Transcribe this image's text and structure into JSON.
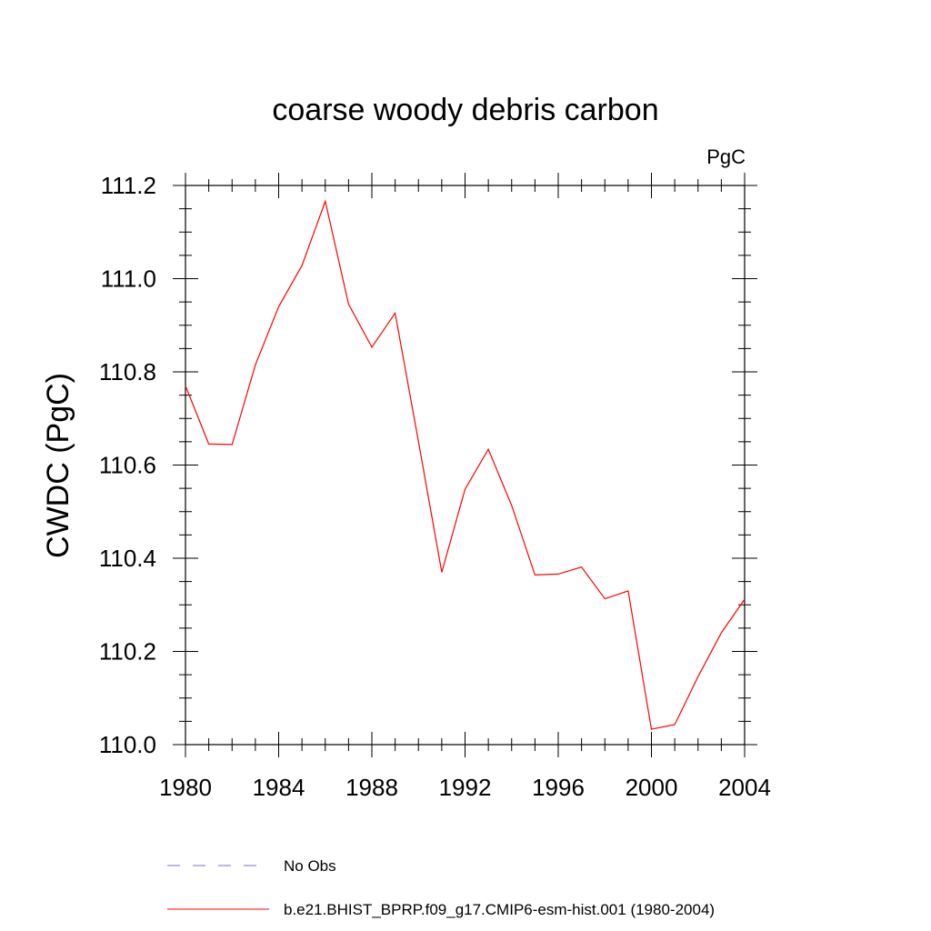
{
  "chart_data": {
    "type": "line",
    "title": "coarse woody debris carbon",
    "units": "PgC",
    "xlabel": "",
    "ylabel": "CWDC  (PgC)",
    "xlim": [
      1980,
      2004
    ],
    "ylim": [
      110.0,
      111.2
    ],
    "x_ticks": [
      1980,
      1984,
      1988,
      1992,
      1996,
      2000,
      2004
    ],
    "x_tick_labels": [
      "1980",
      "1984",
      "1988",
      "1992",
      "1996",
      "2000",
      "2004"
    ],
    "y_ticks": [
      110.0,
      110.2,
      110.4,
      110.6,
      110.8,
      111.0,
      111.2
    ],
    "y_tick_labels": [
      "110.0",
      "110.2",
      "110.4",
      "110.6",
      "110.8",
      "111.0",
      "111.2"
    ],
    "grid": false,
    "legend_position": "bottom",
    "series": [
      {
        "name": "b.e21.BHIST_BPRP.f09_g17.CMIP6-esm-hist.001 (1980-2004)",
        "color": "#ff0000",
        "style": "solid",
        "x": [
          1980,
          1981,
          1982,
          1983,
          1984,
          1985,
          1986,
          1987,
          1988,
          1989,
          1990,
          1991,
          1992,
          1993,
          1994,
          1995,
          1996,
          1997,
          1998,
          1999,
          2000,
          2001,
          2002,
          2003,
          2004
        ],
        "y": [
          110.77,
          110.645,
          110.644,
          110.815,
          110.94,
          111.028,
          111.166,
          110.945,
          110.853,
          110.926,
          110.65,
          110.37,
          110.548,
          110.634,
          110.513,
          110.364,
          110.366,
          110.381,
          110.313,
          110.33,
          110.033,
          110.043,
          110.146,
          110.24,
          110.312
        ]
      }
    ],
    "legend": [
      {
        "label": "No Obs",
        "color": "#7a72c8",
        "style": "dashed"
      },
      {
        "label": "b.e21.BHIST_BPRP.f09_g17.CMIP6-esm-hist.001 (1980-2004)",
        "color": "#ff0000",
        "style": "solid"
      }
    ]
  }
}
